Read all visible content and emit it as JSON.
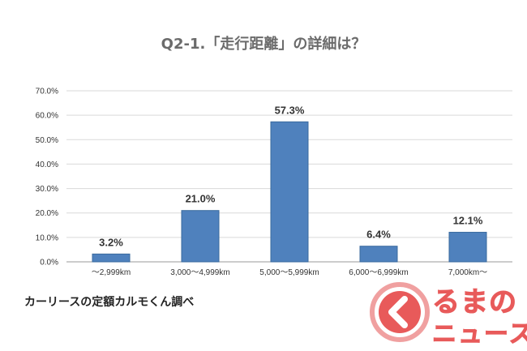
{
  "chart_data": {
    "type": "bar",
    "title": "Q2-1.「走行距離」の詳細は？",
    "categories": [
      "～2,999km",
      "3,000～4,999km",
      "5,000～5,999km",
      "6,000～6,999km",
      "7,000km～"
    ],
    "values": [
      3.2,
      21.0,
      57.3,
      6.4,
      12.1
    ],
    "data_labels": [
      "3.2%",
      "21.0%",
      "57.3%",
      "6.4%",
      "12.1%"
    ],
    "y_ticks": [
      "0.0%",
      "10.0%",
      "20.0%",
      "30.0%",
      "40.0%",
      "50.0%",
      "60.0%",
      "70.0%"
    ],
    "ylim": [
      0,
      70
    ],
    "grid": true,
    "bar_color": "#4f81bd"
  },
  "source": "カーリースの定額カルモくん調べ",
  "logo": {
    "line1": "るまの",
    "line2": "ニュース",
    "color": "#e85a5a",
    "icon": "chevron-left-icon"
  }
}
